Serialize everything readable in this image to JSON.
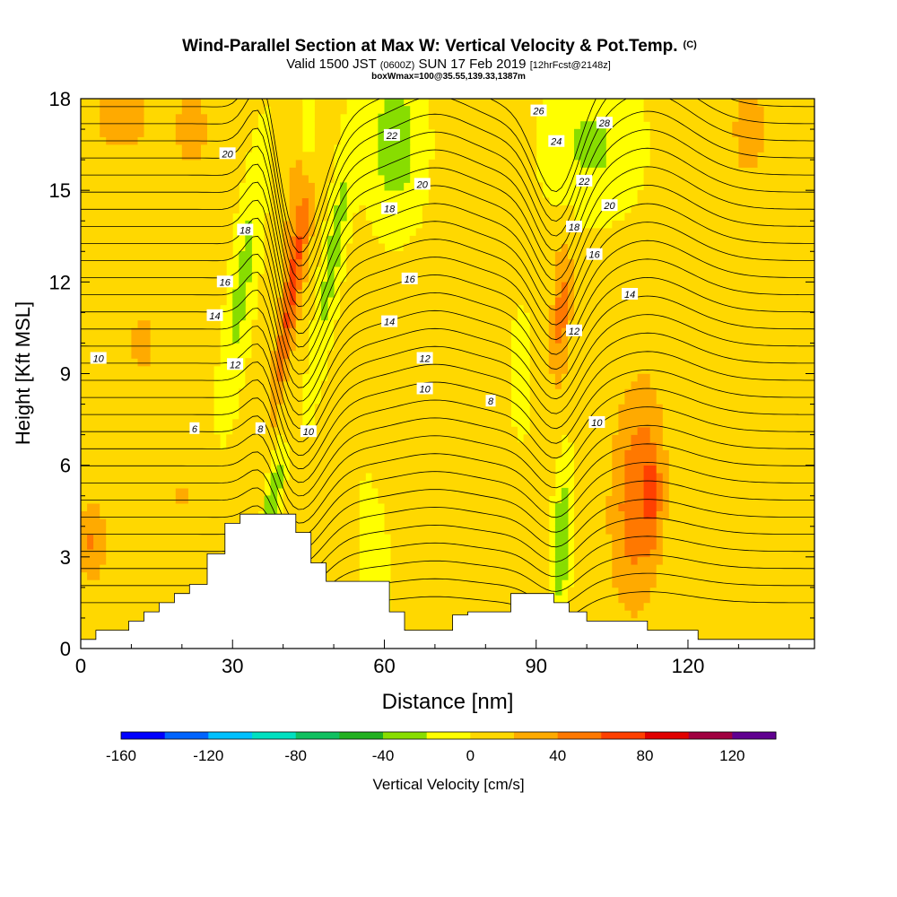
{
  "chart_data": {
    "type": "heatmap",
    "title": "Wind-Parallel Section at Max W: Vertical Velocity & Pot.Temp.",
    "title_mark": "(C)",
    "subtitle_parts": [
      "Valid 1500 JST ",
      "(0600Z)",
      " SUN 17 Feb 2019 ",
      "[12hrFcst@2148z]"
    ],
    "box_info": "boxWmax=100@35.55,139.33,1387m",
    "xlabel": "Distance [nm]",
    "ylabel": "Height [Kft MSL]",
    "xlim": [
      0,
      145
    ],
    "ylim": [
      0,
      18
    ],
    "x_ticks": [
      0,
      30,
      60,
      90,
      120
    ],
    "y_ticks": [
      0,
      3,
      6,
      9,
      12,
      15,
      18
    ],
    "colorbar": {
      "label": "Vertical Velocity [cm/s]",
      "ticks": [
        -160,
        -120,
        -80,
        -40,
        0,
        40,
        80,
        120
      ],
      "range": [
        -160,
        140
      ],
      "step": 20,
      "colors": [
        "#0000ff",
        "#0064ff",
        "#00c0ff",
        "#00e0c0",
        "#10c060",
        "#22b020",
        "#88dd00",
        "#ffff00",
        "#ffd800",
        "#ffaa00",
        "#ff7800",
        "#ff4000",
        "#e00000",
        "#a00040",
        "#600090"
      ]
    },
    "theta_contour_labels": [
      {
        "x": 3.5,
        "y": 9.5,
        "text": "10"
      },
      {
        "x": 22.5,
        "y": 7.2,
        "text": "6"
      },
      {
        "x": 35.5,
        "y": 7.2,
        "text": "8"
      },
      {
        "x": 45,
        "y": 7.1,
        "text": "10"
      },
      {
        "x": 30.5,
        "y": 9.3,
        "text": "12"
      },
      {
        "x": 26.5,
        "y": 10.9,
        "text": "14"
      },
      {
        "x": 28.5,
        "y": 12.0,
        "text": "16"
      },
      {
        "x": 32.5,
        "y": 13.7,
        "text": "18"
      },
      {
        "x": 29,
        "y": 16.2,
        "text": "20"
      },
      {
        "x": 68,
        "y": 8.5,
        "text": "10"
      },
      {
        "x": 68,
        "y": 9.5,
        "text": "12"
      },
      {
        "x": 61,
        "y": 10.7,
        "text": "14"
      },
      {
        "x": 65,
        "y": 12.1,
        "text": "16"
      },
      {
        "x": 61,
        "y": 14.4,
        "text": "18"
      },
      {
        "x": 67.5,
        "y": 15.2,
        "text": "20"
      },
      {
        "x": 61.5,
        "y": 16.8,
        "text": "22"
      },
      {
        "x": 81,
        "y": 8.1,
        "text": "8"
      },
      {
        "x": 97.5,
        "y": 10.4,
        "text": "12"
      },
      {
        "x": 108.5,
        "y": 11.6,
        "text": "14"
      },
      {
        "x": 101.5,
        "y": 12.9,
        "text": "16"
      },
      {
        "x": 97.5,
        "y": 13.8,
        "text": "18"
      },
      {
        "x": 104.5,
        "y": 14.5,
        "text": "20"
      },
      {
        "x": 99.5,
        "y": 15.3,
        "text": "22"
      },
      {
        "x": 94,
        "y": 16.6,
        "text": "24"
      },
      {
        "x": 90.5,
        "y": 17.6,
        "text": "26"
      },
      {
        "x": 103.5,
        "y": 17.2,
        "text": "28"
      },
      {
        "x": 102,
        "y": 7.4,
        "text": "10"
      }
    ],
    "terrain_profile": [
      [
        0,
        0.3
      ],
      [
        3,
        0.3
      ],
      [
        3,
        0.6
      ],
      [
        9.5,
        0.6
      ],
      [
        9.5,
        0.9
      ],
      [
        12.5,
        0.9
      ],
      [
        12.5,
        1.2
      ],
      [
        15.5,
        1.2
      ],
      [
        15.5,
        1.5
      ],
      [
        18.5,
        1.5
      ],
      [
        18.5,
        1.8
      ],
      [
        21.5,
        1.8
      ],
      [
        21.5,
        2.1
      ],
      [
        25,
        2.1
      ],
      [
        25,
        3.1
      ],
      [
        28.5,
        3.1
      ],
      [
        28.5,
        4.1
      ],
      [
        31.5,
        4.1
      ],
      [
        31.5,
        4.4
      ],
      [
        42.5,
        4.4
      ],
      [
        42.5,
        3.8
      ],
      [
        45.5,
        3.8
      ],
      [
        45.5,
        2.8
      ],
      [
        48.5,
        2.8
      ],
      [
        48.5,
        2.2
      ],
      [
        61,
        2.2
      ],
      [
        61,
        1.2
      ],
      [
        64,
        1.2
      ],
      [
        64,
        0.6
      ],
      [
        73.5,
        0.6
      ],
      [
        73.5,
        1.1
      ],
      [
        76.5,
        1.1
      ],
      [
        76.5,
        1.2
      ],
      [
        85,
        1.2
      ],
      [
        85,
        1.8
      ],
      [
        93.5,
        1.8
      ],
      [
        93.5,
        1.5
      ],
      [
        96.5,
        1.5
      ],
      [
        96.5,
        1.2
      ],
      [
        100,
        1.2
      ],
      [
        100,
        0.9
      ],
      [
        112,
        0.9
      ],
      [
        112,
        0.6
      ],
      [
        122,
        0.6
      ],
      [
        122,
        0.3
      ],
      [
        145,
        0.3
      ]
    ]
  }
}
